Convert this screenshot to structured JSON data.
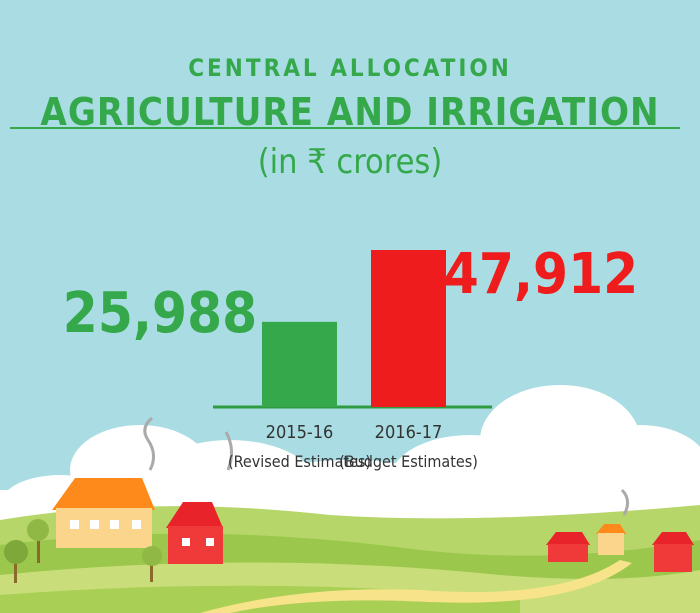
{
  "header": {
    "kicker": "CENTRAL ALLOCATION",
    "title": "AGRICULTURE AND IRRIGATION",
    "unit": "(in ₹ crores)"
  },
  "colors": {
    "sky": "#a9dde3",
    "green": "#34a84a",
    "red": "#ee1c1c"
  },
  "chart_data": {
    "type": "bar",
    "categories": [
      "2015-16",
      "2016-17"
    ],
    "sublabels": [
      "(Revised Estimates)",
      "(Budget Estimates)"
    ],
    "values": [
      25988,
      47912
    ],
    "value_labels": [
      "25,988",
      "47,912"
    ],
    "bar_colors": [
      "#34a84a",
      "#ee1c1c"
    ],
    "ylim": [
      0,
      47912
    ],
    "grid": false,
    "title": "AGRICULTURE AND IRRIGATION"
  }
}
